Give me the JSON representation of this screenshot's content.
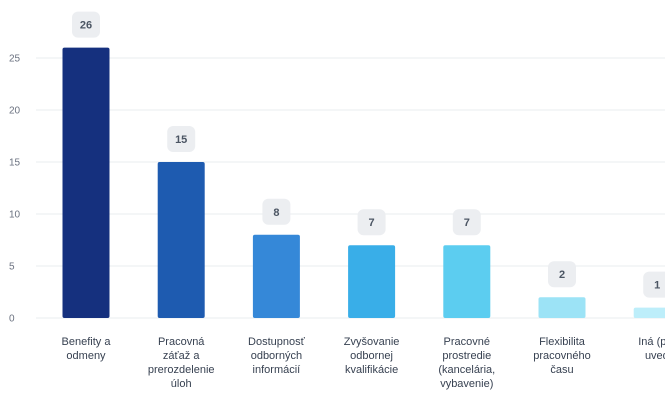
{
  "chart_data": {
    "type": "bar",
    "title": "",
    "xlabel": "",
    "ylabel": "",
    "ylim": [
      0,
      27.5
    ],
    "yticks": [
      0,
      5,
      10,
      15,
      20,
      25
    ],
    "grid": true,
    "legend": "none",
    "categories": [
      [
        "Benefity a",
        "odmeny"
      ],
      [
        "Pracovná",
        "záťaž a",
        "prerozdelenie",
        "úloh"
      ],
      [
        "Dostupnosť",
        "odborných",
        "informácií"
      ],
      [
        "Zvyšovanie",
        "odbornej",
        "kvalifikácie"
      ],
      [
        "Pracovné",
        "prostredie",
        "(kancelária,",
        "vybavenie)"
      ],
      [
        "Flexibilita",
        "pracovného",
        "času"
      ],
      [
        "Iná (pre",
        "uveď"
      ]
    ],
    "values": [
      26,
      15,
      8,
      7,
      7,
      2,
      1
    ],
    "colors": [
      "#15307e",
      "#1e5bb0",
      "#3588d8",
      "#39aee8",
      "#5ccdf0",
      "#9ce3f6",
      "#bdeefa"
    ]
  }
}
